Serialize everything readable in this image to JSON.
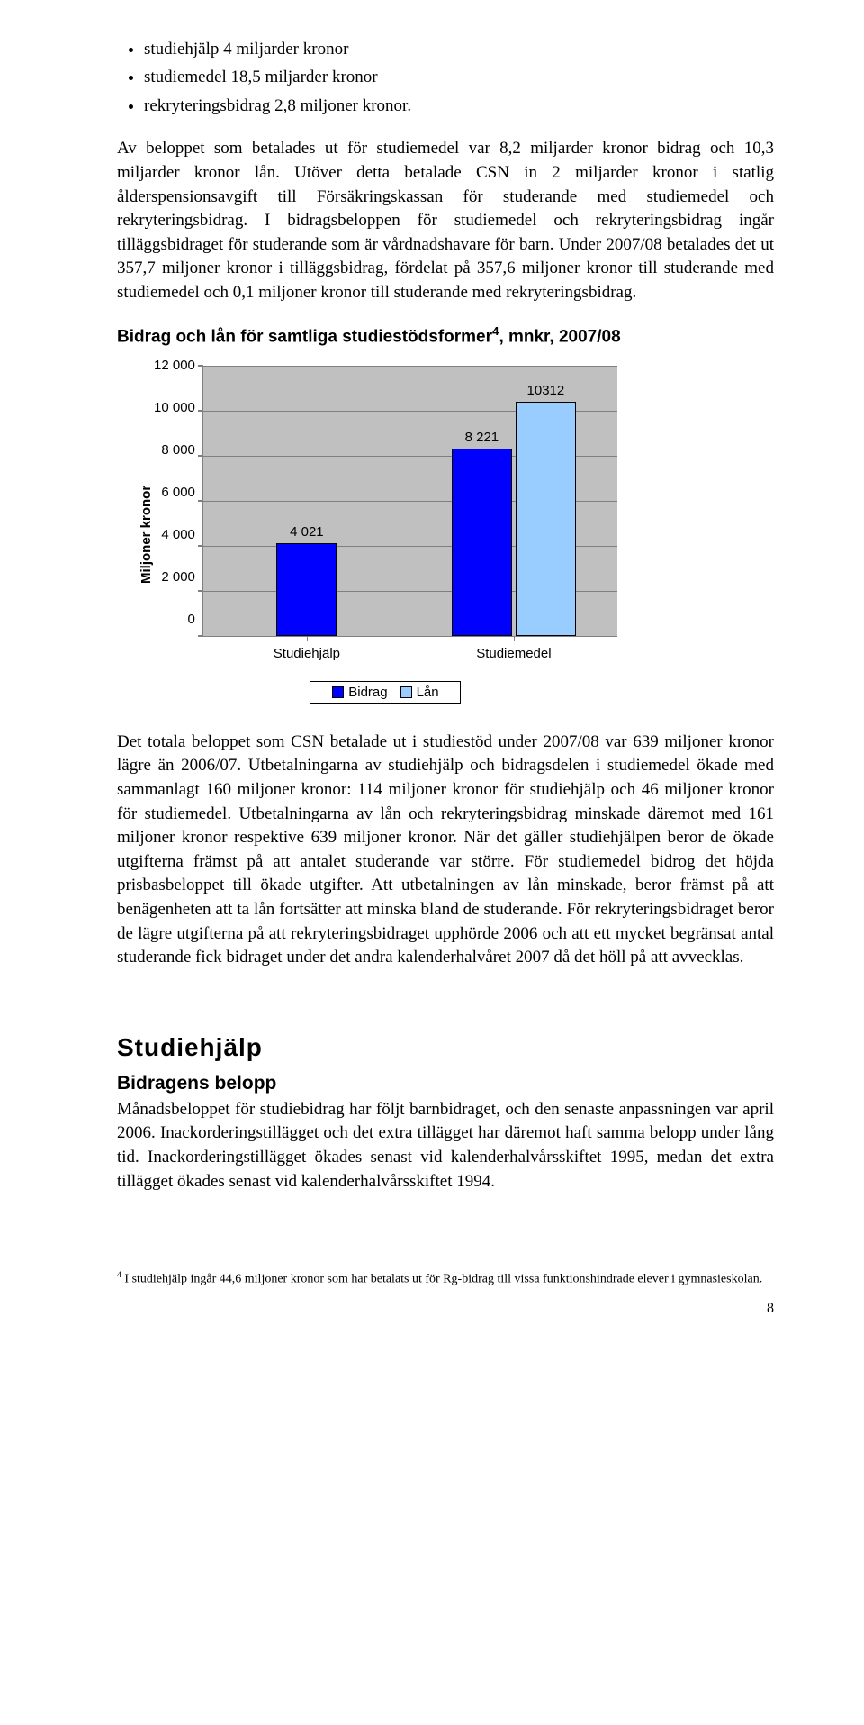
{
  "bullets": [
    "studiehjälp 4 miljarder kronor",
    "studiemedel 18,5 miljarder kronor",
    "rekryteringsbidrag 2,8 miljoner kronor."
  ],
  "para1": "Av beloppet som betalades ut för studiemedel var 8,2 miljarder kronor bidrag och 10,3 miljarder kronor lån. Utöver detta betalade CSN in 2 miljarder kronor i statlig ålderspensionsavgift till Försäkringskassan för studerande med studiemedel och rekryteringsbidrag. I bidragsbeloppen för studiemedel och rekryteringsbidrag ingår tilläggsbidraget för studerande som är vårdnadshavare för barn. Under 2007/08 betalades det ut 357,7 miljoner kronor i tilläggsbidrag, fördelat på 357,6 miljoner kronor till studerande med studiemedel och 0,1 miljoner kronor till studerande med rekryteringsbidrag.",
  "chart": {
    "title": "Bidrag och lån för samtliga studiestödsformer",
    "title_sup": "4",
    "title_suffix": ", mnkr, 2007/08",
    "ylabel": "Miljoner kronor",
    "ymax": 12000,
    "yticks": [
      "12 000",
      "10 000",
      "8 000",
      "6 000",
      "4 000",
      "2 000",
      "0"
    ],
    "categories": [
      "Studiehjälp",
      "Studiemedel"
    ],
    "series": [
      {
        "name": "Bidrag",
        "color": "#0000ff"
      },
      {
        "name": "Lån",
        "color": "#99ccff"
      }
    ],
    "groups": [
      {
        "bars": [
          {
            "value": 4021,
            "label": "4 021",
            "color": "#0000ff"
          }
        ]
      },
      {
        "bars": [
          {
            "value": 8221,
            "label": "8 221",
            "color": "#0000ff"
          },
          {
            "value": 10312,
            "label": "10312",
            "color": "#99ccff"
          }
        ]
      }
    ],
    "plot_bg": "#c0c0c0",
    "grid_color": "#808080"
  },
  "para2": "Det totala beloppet som CSN betalade ut i studiestöd under 2007/08 var 639 miljoner kronor lägre än 2006/07. Utbetalningarna av studiehjälp och bidragsdelen i studiemedel ökade med sammanlagt 160 miljoner kronor: 114 miljoner kronor för studiehjälp och 46 miljoner kronor för studiemedel. Utbetalningarna av lån och rekryteringsbidrag minskade däremot med 161 miljoner kronor respektive 639 miljoner kronor. När det gäller studiehjälpen beror de ökade utgifterna främst på att antalet studerande var större. För studiemedel bidrog det höjda prisbasbeloppet till ökade utgifter. Att utbetalningen av lån minskade, beror främst på att benägenheten att ta lån fortsätter att minska bland de studerande. För rekryteringsbidraget beror de lägre utgifterna på att rekryteringsbidraget upphörde 2006 och att ett mycket begränsat antal studerande fick bidraget under det andra kalenderhalvåret 2007 då det höll på att avvecklas.",
  "section_heading": "Studiehjälp",
  "subheading": "Bidragens belopp",
  "para3": "Månadsbeloppet för studiebidrag har följt barnbidraget, och den senaste anpassningen var april 2006. Inackorderingstillägget och det extra tillägget har däremot haft samma belopp under lång tid. Inackorderingstillägget ökades senast vid kalenderhalvårsskiftet 1995, medan det extra tillägget ökades senast vid kalenderhalvårsskiftet 1994.",
  "footnote_marker": "4",
  "footnote_text": " I studiehjälp ingår 44,6 miljoner kronor som har betalats ut för Rg-bidrag till vissa funktionshindrade elever i gymnasieskolan.",
  "page_number": "8"
}
